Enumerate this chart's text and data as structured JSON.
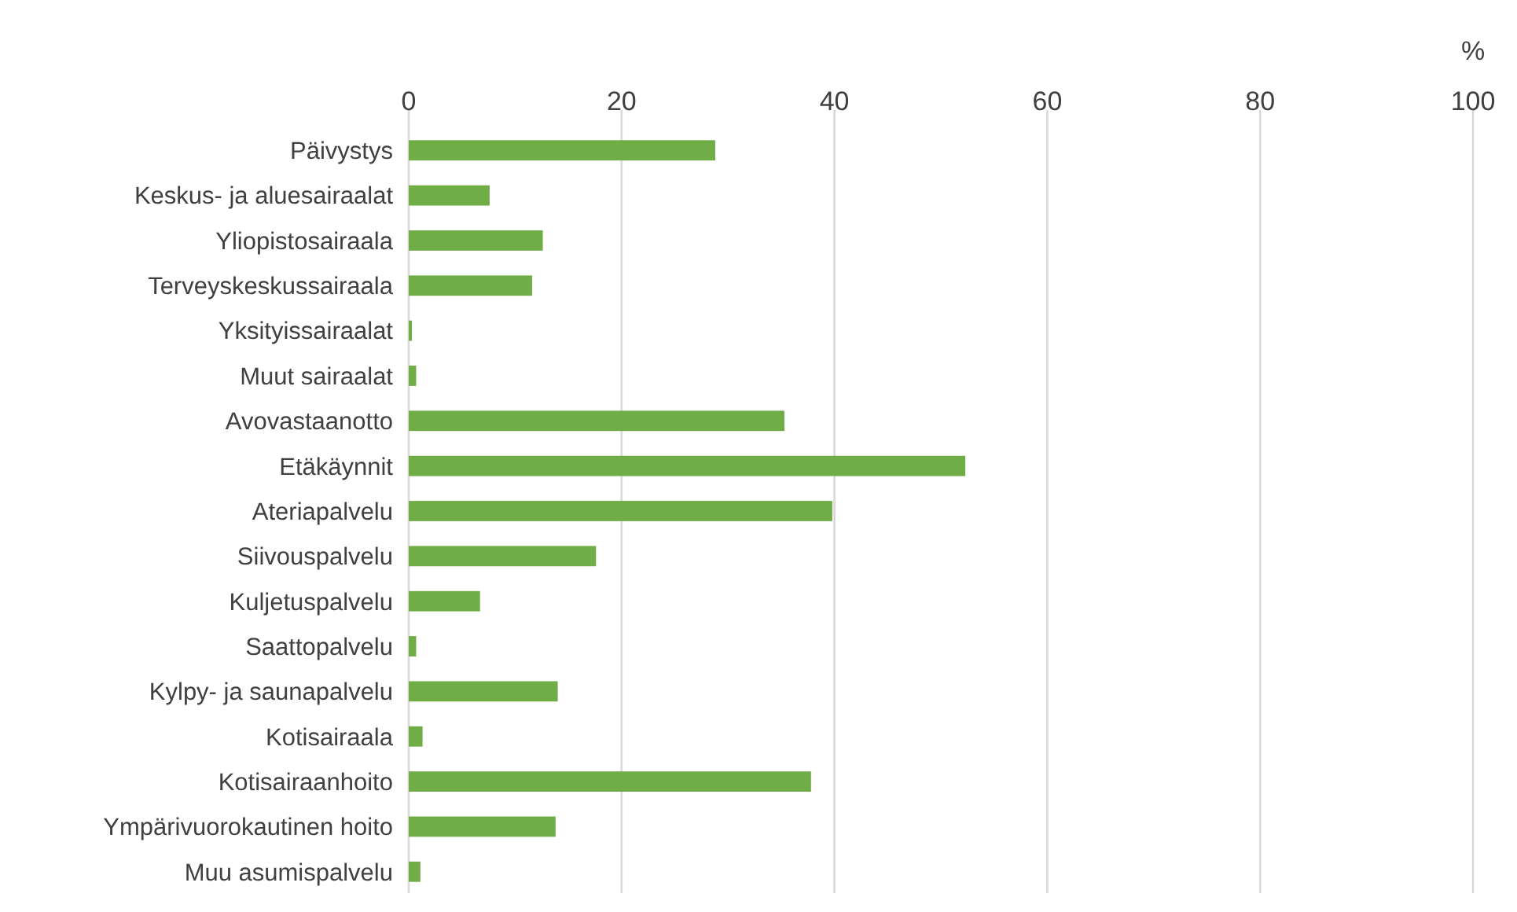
{
  "chart_data": {
    "type": "bar",
    "orientation": "horizontal",
    "xlabel": "%",
    "categories": [
      "Päivystys",
      "Keskus- ja aluesairaalat",
      "Yliopistosairaala",
      "Terveyskeskussairaala",
      "Yksityissairaalat",
      "Muut sairaalat",
      "Avovastaanotto",
      "Etäkäynnit",
      "Ateriapalvelu",
      "Siivouspalvelu",
      "Kuljetuspalvelu",
      "Saattopalvelu",
      "Kylpy- ja saunapalvelu",
      "Kotisairaala",
      "Kotisairaanhoito",
      "Ympärivuorokautinen hoito",
      "Muu asumispalvelu"
    ],
    "values": [
      28.8,
      7.6,
      12.6,
      11.6,
      0.3,
      0.7,
      35.3,
      52.3,
      39.8,
      17.6,
      6.7,
      0.7,
      14.0,
      1.3,
      37.8,
      13.8,
      1.1
    ],
    "color": "#70ad47",
    "xlim": [
      0,
      100
    ],
    "xticks": [
      0,
      20,
      40,
      60,
      80,
      100
    ],
    "grid": "x"
  }
}
